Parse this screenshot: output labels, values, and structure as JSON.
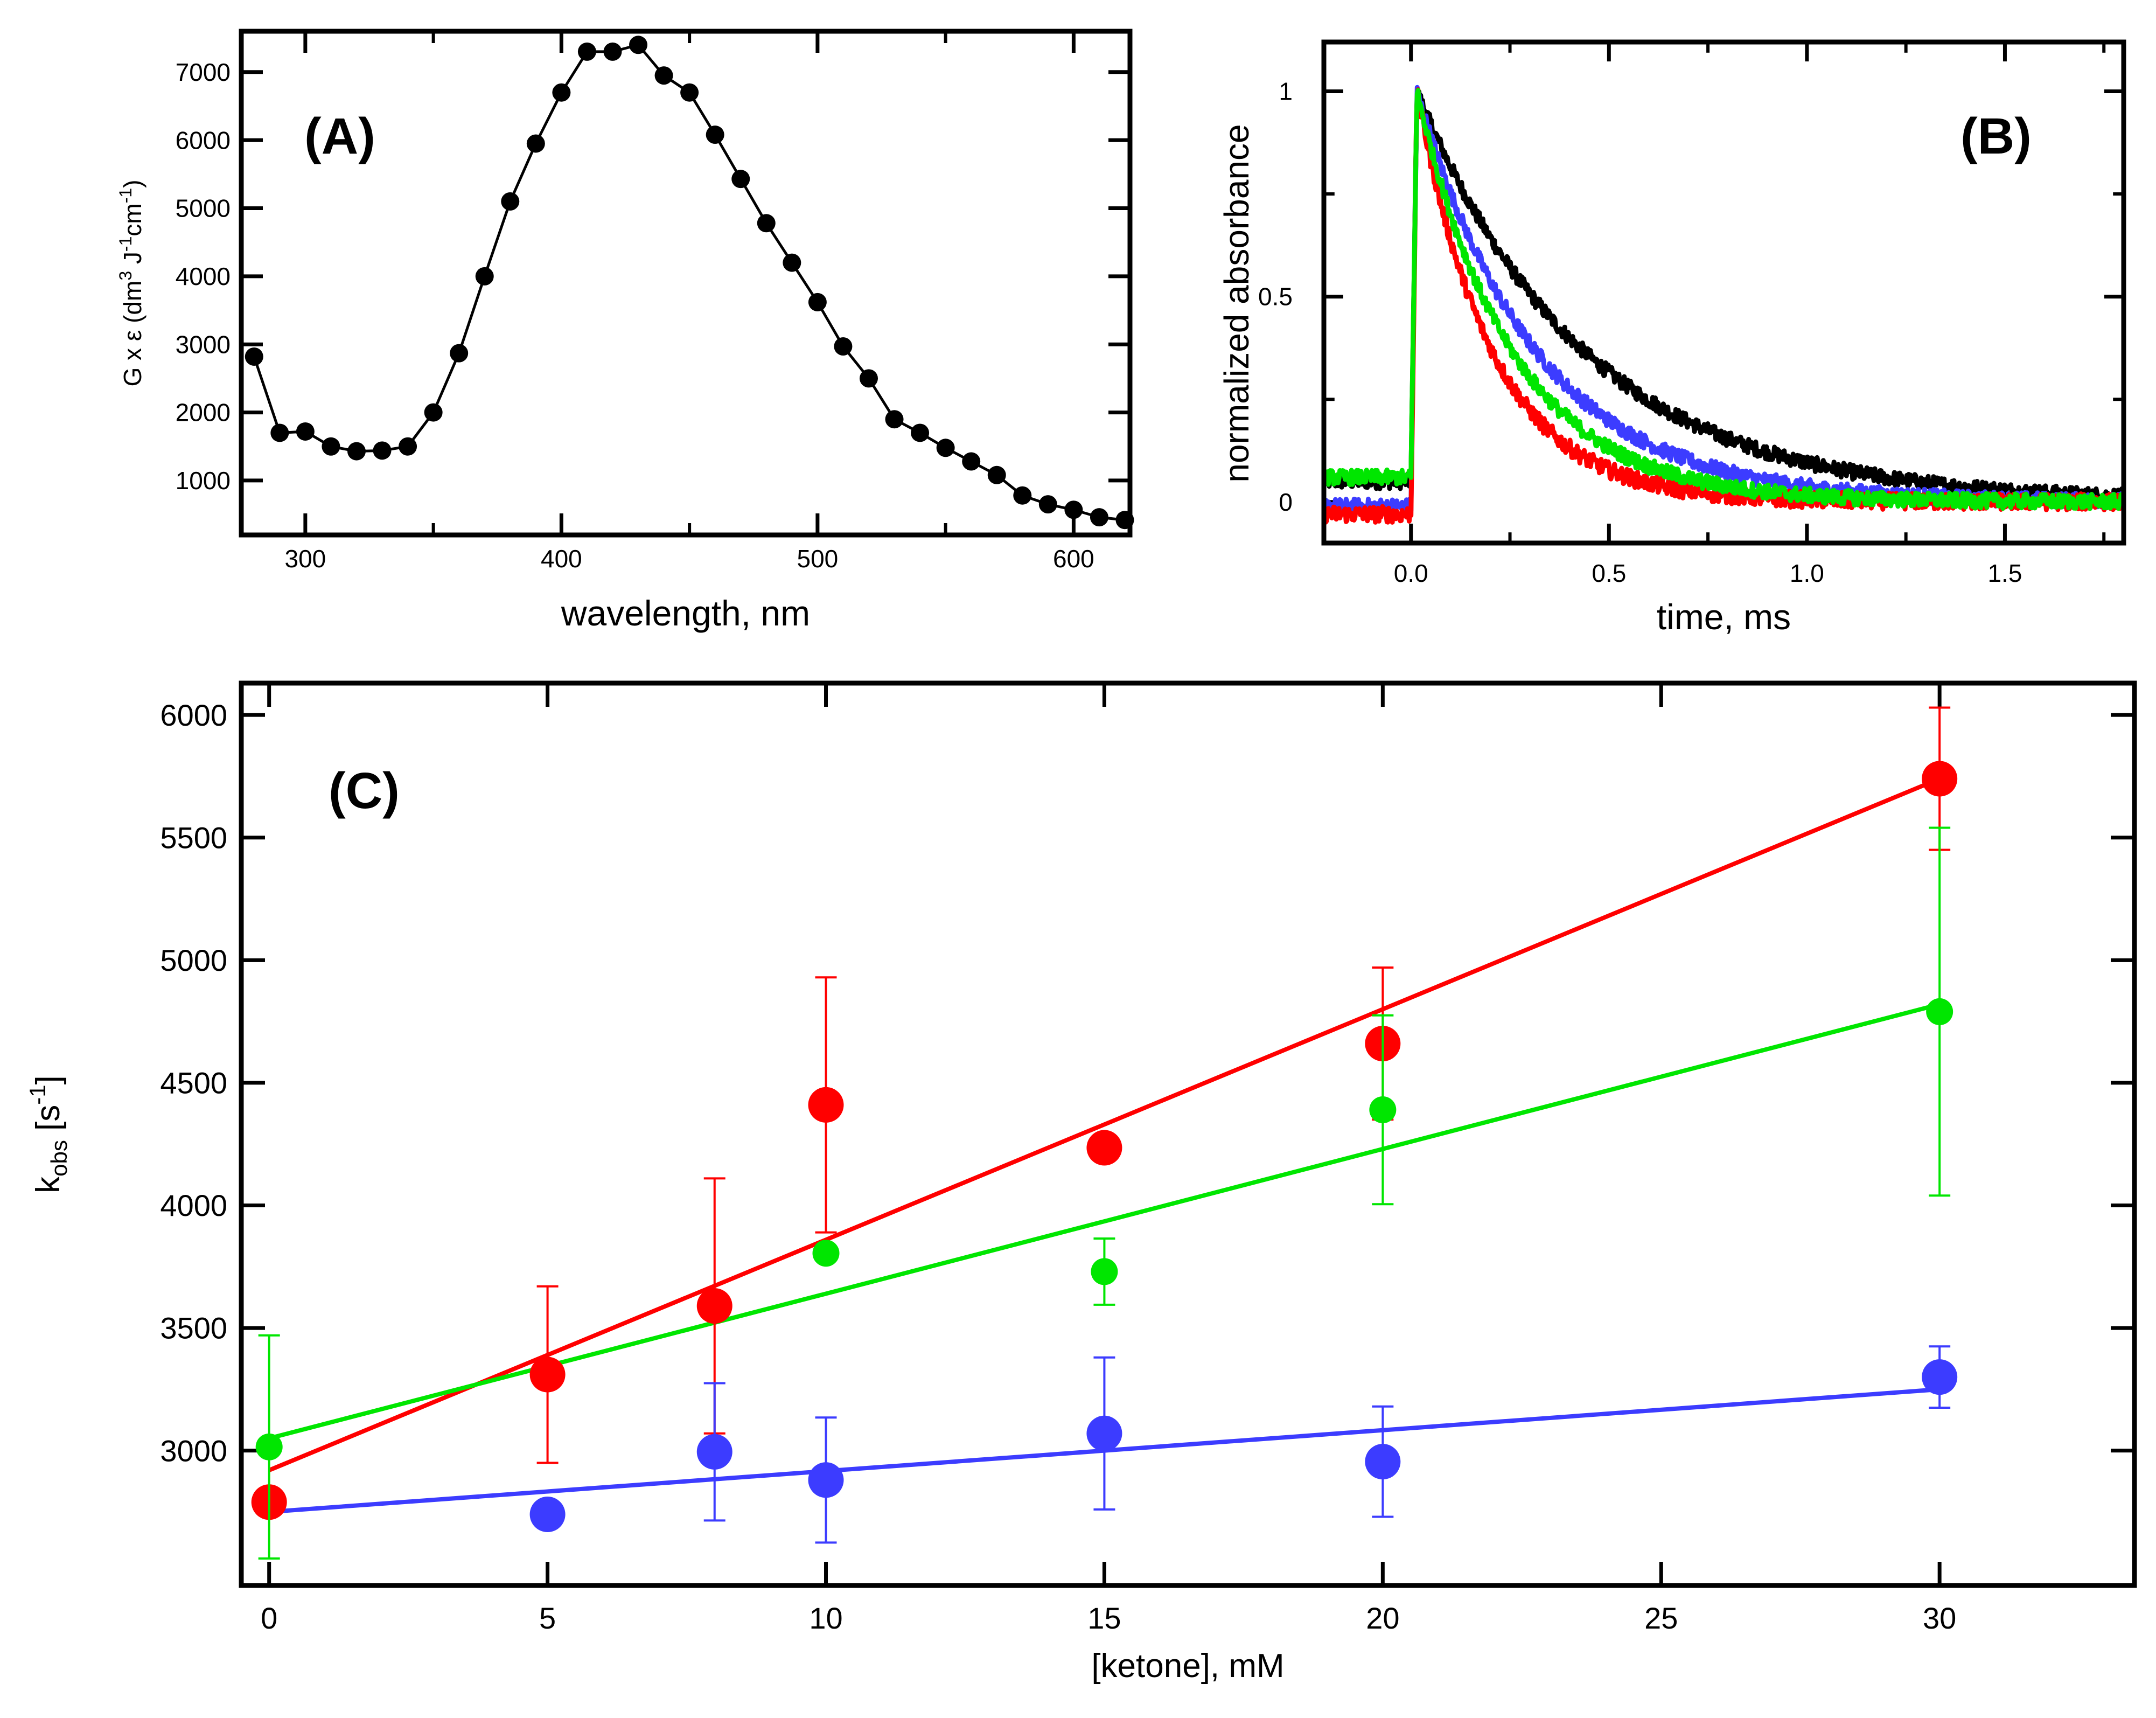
{
  "figure": {
    "panels": {
      "A": {
        "label": "(A)"
      },
      "B": {
        "label": "(B)"
      },
      "C": {
        "label": "(C)"
      }
    }
  },
  "chart_data": [
    {
      "id": "A",
      "type": "line",
      "xlabel": "wavelength, nm",
      "ylabel": "G x ε (dm3 J-1 cm-1)",
      "ylabel_parts": {
        "a": "G x ε (dm",
        "b": "3",
        "c": " J",
        "d": "-1",
        "e": "cm",
        "f": "-1",
        "g": ")"
      },
      "xlim": [
        275,
        622
      ],
      "ylim": [
        200,
        7600
      ],
      "xticks": [
        300,
        400,
        500,
        600
      ],
      "yticks": [
        1000,
        2000,
        3000,
        4000,
        5000,
        6000,
        7000
      ],
      "series": [
        {
          "color": "#000000",
          "x": [
            280,
            290,
            300,
            310,
            320,
            330,
            340,
            350,
            360,
            370,
            380,
            390,
            400,
            410,
            420,
            430,
            440,
            450,
            460,
            470,
            480,
            490,
            500,
            510,
            520,
            530,
            540,
            550,
            560,
            570,
            580,
            590,
            600,
            610,
            620
          ],
          "y": [
            2820,
            1700,
            1720,
            1500,
            1430,
            1440,
            1500,
            2000,
            2870,
            4000,
            5100,
            5950,
            6700,
            7300,
            7300,
            7400,
            6950,
            6700,
            6080,
            5430,
            4780,
            4200,
            3620,
            2970,
            2500,
            1900,
            1700,
            1480,
            1280,
            1080,
            780,
            650,
            570,
            460,
            420
          ]
        }
      ]
    },
    {
      "id": "B",
      "type": "line",
      "xlabel": "time, ms",
      "ylabel": "normalized absorbance",
      "xlim": [
        -0.22,
        1.8
      ],
      "ylim": [
        -0.1,
        1.12
      ],
      "xticks": [
        0.0,
        0.5,
        1.0,
        1.5
      ],
      "xtick_labels": [
        "0.0",
        "0.5",
        "1.0",
        "1.5"
      ],
      "yticks": [
        0,
        0.5,
        1
      ],
      "ytick_labels": [
        "0",
        "0.5",
        "1"
      ],
      "series": [
        {
          "color": "#000000",
          "baseline": 0.05,
          "amplitude": 1.0,
          "tau": 0.42,
          "noise": 0.018
        },
        {
          "color": "#ff0000",
          "baseline": -0.03,
          "amplitude": 1.0,
          "tau": 0.19,
          "noise": 0.02
        },
        {
          "color": "#3c3cff",
          "baseline": -0.01,
          "amplitude": 1.0,
          "tau": 0.3,
          "noise": 0.018
        },
        {
          "color": "#00e600",
          "baseline": 0.06,
          "amplitude": 1.0,
          "tau": 0.24,
          "noise": 0.018
        }
      ],
      "rise_time": 0.015
    },
    {
      "id": "C",
      "type": "scatter",
      "xlabel": "[ketone], mM",
      "ylabel": "kobs [s-1]",
      "xlim": [
        -0.5,
        33.5
      ],
      "ylim": [
        2450,
        6130
      ],
      "xticks": [
        0,
        5,
        10,
        15,
        20,
        25,
        30
      ],
      "yticks": [
        3000,
        3500,
        4000,
        4500,
        5000,
        5500,
        6000
      ],
      "series": [
        {
          "color": "#ff0000",
          "marker_size": "large",
          "x": [
            0,
            5,
            8,
            10,
            15,
            20,
            30
          ],
          "y": [
            2790,
            3310,
            3590,
            4410,
            4235,
            4660,
            5740
          ],
          "err": [
            0,
            360,
            520,
            520,
            0,
            310,
            290
          ],
          "fit": {
            "x": [
              0,
              30
            ],
            "y": [
              2920,
              5740
            ]
          }
        },
        {
          "color": "#00e600",
          "marker_size": "small",
          "x": [
            0,
            10,
            15,
            20,
            30
          ],
          "y": [
            3015,
            3805,
            3730,
            4390,
            4790
          ],
          "err": [
            455,
            0,
            135,
            385,
            750
          ],
          "fit": {
            "x": [
              0,
              30
            ],
            "y": [
              3050,
              4820
            ]
          }
        },
        {
          "color": "#3c3cff",
          "marker_size": "large",
          "x": [
            5,
            8,
            10,
            15,
            20,
            30
          ],
          "y": [
            2740,
            2995,
            2880,
            3070,
            2955,
            3300
          ],
          "err": [
            50,
            280,
            255,
            310,
            225,
            125
          ],
          "fit": {
            "x": [
              0,
              30
            ],
            "y": [
              2750,
              3250
            ]
          }
        }
      ]
    }
  ]
}
